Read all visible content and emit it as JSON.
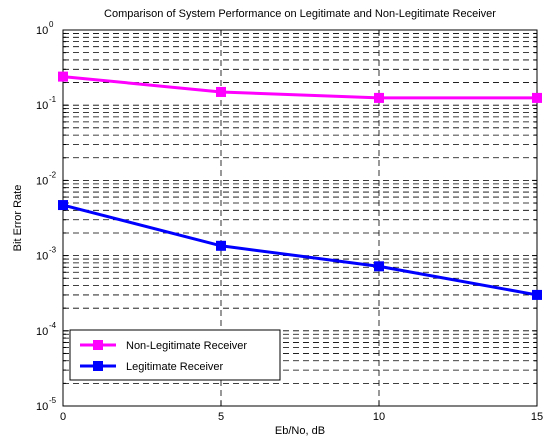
{
  "chart_data": {
    "type": "line",
    "title": "Comparison of System Performance on Legitimate and Non-Legitimate Receiver",
    "xlabel": "Eb/No, dB",
    "ylabel": "Bit Error Rate",
    "x": [
      0,
      5,
      10,
      15
    ],
    "xticks": [
      0,
      5,
      10,
      15
    ],
    "xlim": [
      0,
      15
    ],
    "ylim": [
      1e-05,
      1
    ],
    "yscale": "log",
    "ytick_labels": [
      {
        "base": "10",
        "exp": "0"
      },
      {
        "base": "10",
        "exp": "-1"
      },
      {
        "base": "10",
        "exp": "-2"
      },
      {
        "base": "10",
        "exp": "-3"
      },
      {
        "base": "10",
        "exp": "-4"
      },
      {
        "base": "10",
        "exp": "-5"
      }
    ],
    "grid": true,
    "legend_position": "bottom-left",
    "series": [
      {
        "name": "Non-Legitimate Receiver",
        "color": "#ff00ff",
        "marker": "square",
        "values": [
          0.24,
          0.15,
          0.125,
          0.125
        ]
      },
      {
        "name": "Legitimate Receiver",
        "color": "#0000ff",
        "marker": "square",
        "values": [
          0.0047,
          0.00135,
          0.00072,
          0.0003
        ]
      }
    ]
  }
}
